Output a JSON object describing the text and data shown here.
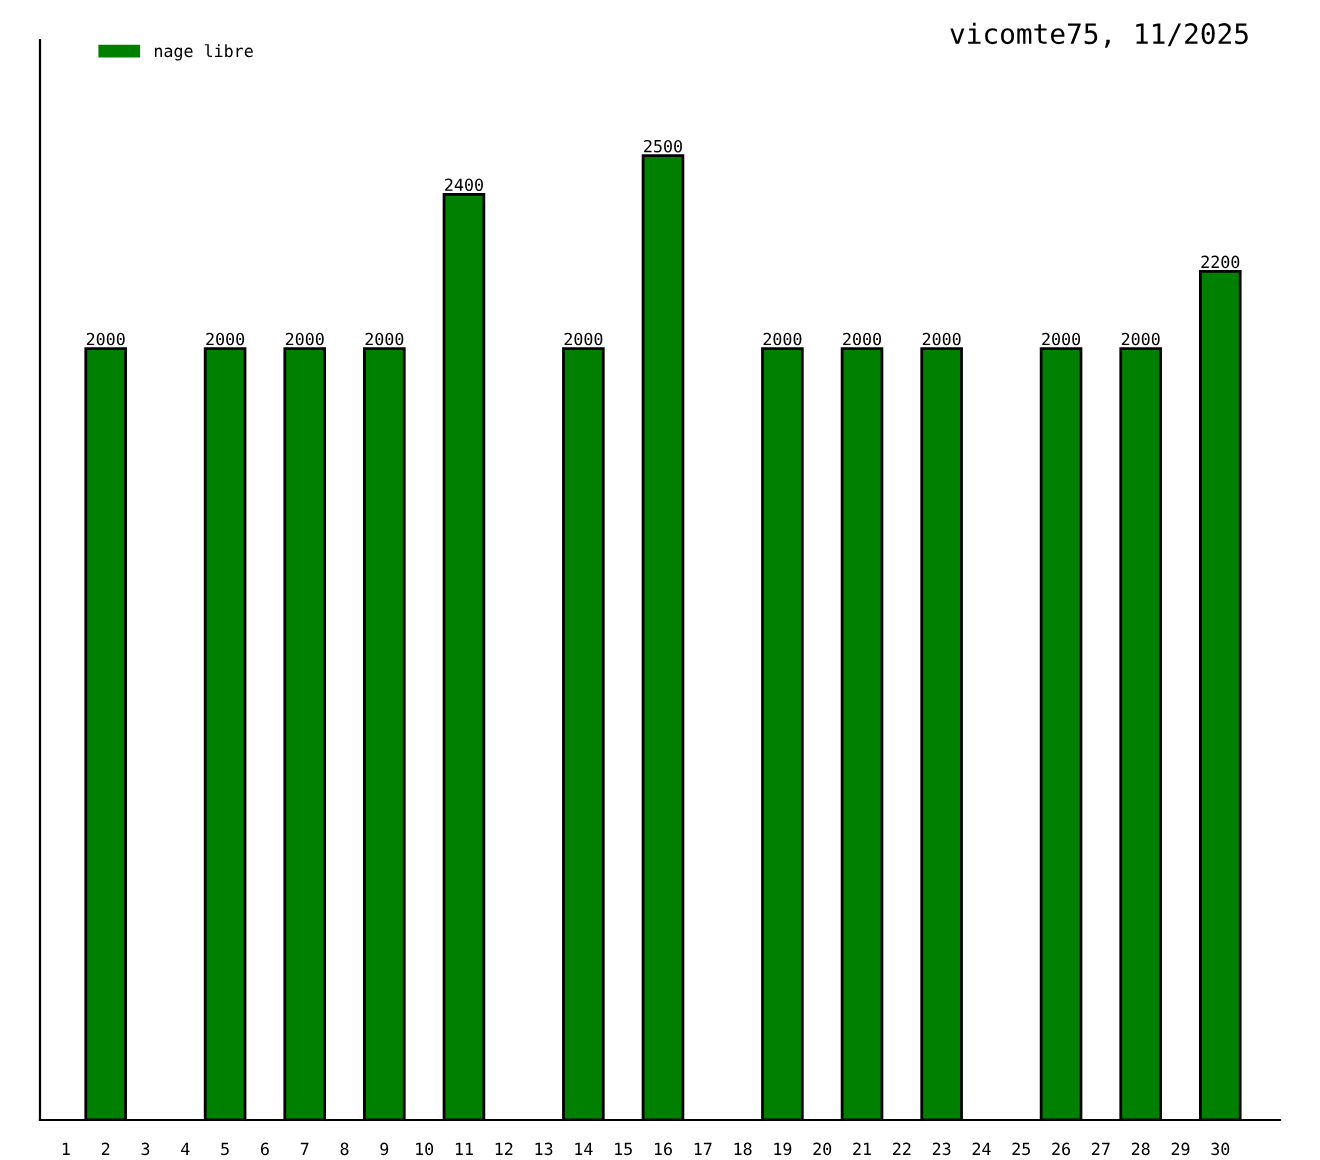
{
  "chart_data": {
    "type": "bar",
    "title": "vicomte75, 11/2025",
    "categories": [
      "1",
      "2",
      "3",
      "4",
      "5",
      "6",
      "7",
      "8",
      "9",
      "10",
      "11",
      "12",
      "13",
      "14",
      "15",
      "16",
      "17",
      "18",
      "19",
      "20",
      "21",
      "22",
      "23",
      "24",
      "25",
      "26",
      "27",
      "28",
      "29",
      "30"
    ],
    "series": [
      {
        "name": "nage libre",
        "color": "#008000",
        "values": [
          null,
          2000,
          null,
          null,
          2000,
          null,
          2000,
          null,
          2000,
          null,
          2400,
          null,
          null,
          2000,
          null,
          2500,
          null,
          null,
          2000,
          null,
          2000,
          null,
          2000,
          null,
          null,
          2000,
          null,
          2000,
          null,
          2200
        ]
      }
    ],
    "ylim": [
      0,
      2800
    ],
    "data_labels": true,
    "legend": "top left",
    "grid": false
  }
}
